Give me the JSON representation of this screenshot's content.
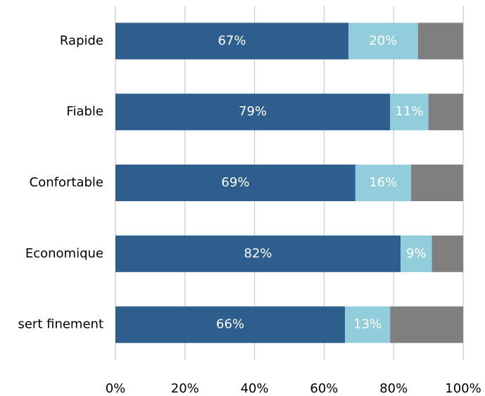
{
  "chart_data": {
    "type": "bar",
    "orientation": "horizontal",
    "stacked": true,
    "categories": [
      "Rapide",
      "Fiable",
      "Confortable",
      "Economique",
      "sert finement"
    ],
    "series": [
      {
        "color": "#2e5e8e",
        "values": [
          67,
          79,
          69,
          82,
          66
        ],
        "value_labels": [
          "67%",
          "79%",
          "69%",
          "82%",
          "66%"
        ]
      },
      {
        "color": "#92cddc",
        "values": [
          20,
          11,
          16,
          9,
          13
        ],
        "value_labels": [
          "20%",
          "11%",
          "16%",
          "9%",
          "13%"
        ]
      },
      {
        "color": "#7f7f7f",
        "values": [
          13,
          10,
          15,
          9,
          21
        ]
      }
    ],
    "xlim": [
      0,
      100
    ],
    "xticks": [
      {
        "value": 0,
        "label": "0%"
      },
      {
        "value": 20,
        "label": "20%"
      },
      {
        "value": 40,
        "label": "40%"
      },
      {
        "value": 60,
        "label": "60%"
      },
      {
        "value": 80,
        "label": "80%"
      },
      {
        "value": 100,
        "label": "100%"
      }
    ],
    "grid": true
  }
}
